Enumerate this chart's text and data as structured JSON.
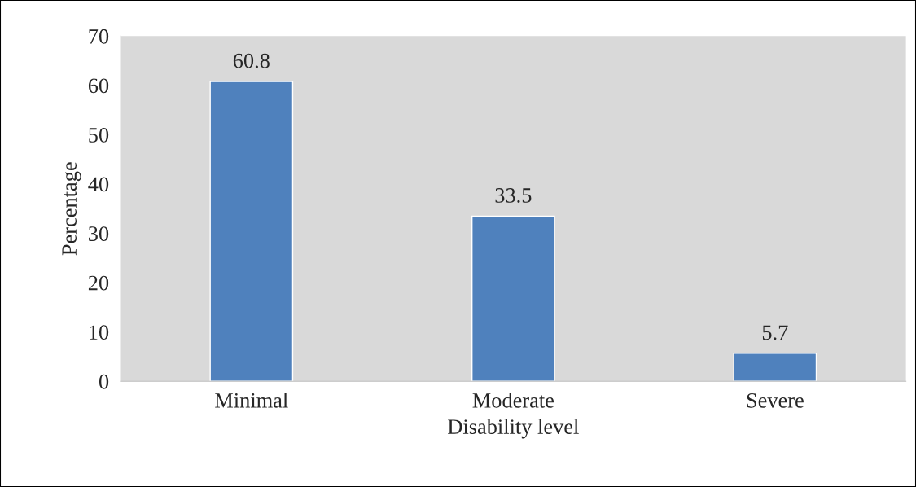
{
  "chart_data": {
    "type": "bar",
    "xlabel": "Disability level",
    "ylabel": "Percentage",
    "categories": [
      "Minimal",
      "Moderate",
      "Severe"
    ],
    "values": [
      60.8,
      33.5,
      5.7
    ],
    "color": "#4f81bd",
    "ylim": [
      0,
      70
    ],
    "yticks": [
      0,
      10,
      20,
      30,
      40,
      50,
      60,
      70
    ],
    "grid": false,
    "data_labels": true
  }
}
